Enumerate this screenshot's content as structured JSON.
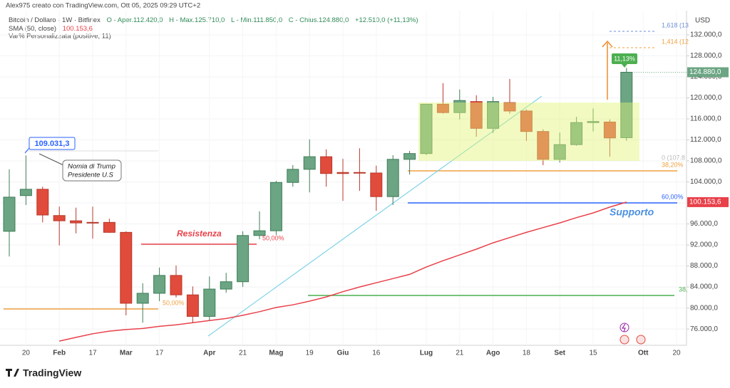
{
  "header": {
    "credit": "Alex975 creato con TradingView.com, Ott 05, 2025 09:29 UTC+2",
    "symbol": "Bitcoin / Dollaro · 1W · Bitfinex",
    "ohlc": [
      "O - Aper.112.420,0",
      "H - Max.125.710,0",
      "L - Min.111.850,0",
      "C - Chius.124.880,0",
      "+12.510,0 (+11,13%)"
    ],
    "sma_name": "SMA (50, close)",
    "indicator": "Var% Personalizzata (positive, 11)"
  },
  "chart_data": {
    "type": "candlestick",
    "currency": "USD",
    "categories": [
      null,
      "20",
      null,
      "Feb",
      null,
      "17",
      null,
      "Mar",
      null,
      "17",
      null,
      null,
      "Apr",
      null,
      "21",
      null,
      "Mag",
      null,
      "19",
      null,
      "Giu",
      null,
      "16",
      null,
      null,
      "Lug",
      null,
      "21",
      null,
      "Ago",
      null,
      "18",
      null,
      "Set",
      null,
      "15",
      null,
      null,
      "Ott",
      null,
      "20"
    ],
    "open": [
      94600,
      101400,
      102600,
      97600,
      96600,
      96300,
      96300,
      94400,
      80900,
      82800,
      86200,
      82500,
      78400,
      83600,
      85000,
      93800,
      94700,
      103900,
      106400,
      108800,
      105800,
      105800,
      105700,
      101200,
      108300,
      109400,
      118800,
      117200,
      119300,
      114200,
      119100,
      117500,
      113600,
      108300,
      111100,
      115300,
      115400,
      112420,
      null,
      null,
      null
    ],
    "high": [
      106400,
      109031.3,
      103100,
      99300,
      99100,
      99300,
      97000,
      94600,
      84700,
      87700,
      88100,
      84100,
      86000,
      86700,
      94600,
      98400,
      104200,
      107200,
      112100,
      110200,
      108400,
      110400,
      107100,
      109100,
      109900,
      118800,
      122800,
      121600,
      120500,
      120200,
      123600,
      117800,
      114000,
      113400,
      116400,
      118000,
      115900,
      125710,
      null,
      null,
      null
    ],
    "low": [
      89800,
      99600,
      96300,
      91900,
      94200,
      93200,
      94300,
      78600,
      77200,
      81300,
      82000,
      77200,
      77600,
      82900,
      84000,
      93100,
      93900,
      103100,
      102000,
      103100,
      100400,
      102300,
      98500,
      99600,
      105400,
      109100,
      117000,
      115900,
      112600,
      113300,
      117000,
      111800,
      107200,
      107700,
      110900,
      113600,
      108800,
      111850,
      null,
      null,
      null
    ],
    "close": [
      101100,
      102600,
      97700,
      96600,
      96200,
      96200,
      94400,
      80900,
      82800,
      86200,
      82500,
      78400,
      83600,
      85000,
      93800,
      94700,
      103900,
      106400,
      108800,
      105600,
      105600,
      105700,
      101200,
      108300,
      109400,
      118800,
      117200,
      119500,
      114200,
      119300,
      117500,
      113600,
      108300,
      111100,
      115300,
      115500,
      112370,
      124880,
      null,
      null,
      null
    ],
    "up_color": "#6ba583",
    "down_color": "#e04b3c",
    "last_price_label": "124.880,0",
    "sma": {
      "color": "#e8414a",
      "last_label": "100.153,6",
      "values": [
        null,
        null,
        null,
        73700,
        74400,
        75100,
        75600,
        75900,
        76100,
        76500,
        76800,
        77200,
        77600,
        78000,
        78600,
        79300,
        80100,
        80600,
        81300,
        82100,
        83100,
        84000,
        84800,
        85600,
        86400,
        87800,
        89000,
        90100,
        91200,
        92400,
        93400,
        94400,
        95300,
        96200,
        97200,
        98100,
        99200,
        100153.6,
        null,
        null,
        null
      ]
    },
    "ylim": [
      72900,
      136600
    ],
    "yticks": [
      {
        "value": 76000,
        "label": "76.000,0"
      },
      {
        "value": 80000,
        "label": "80.000,0"
      },
      {
        "value": 84000,
        "label": "84.000,0"
      },
      {
        "value": 88000,
        "label": "88.000,0"
      },
      {
        "value": 92000,
        "label": "92.000,0"
      },
      {
        "value": 96000,
        "label": "96.000,0"
      },
      {
        "value": 100000,
        "label": "100.000,0"
      },
      {
        "value": 104000,
        "label": "104.000,0"
      },
      {
        "value": 108000,
        "label": "108.000,0"
      },
      {
        "value": 112000,
        "label": "112.000,0"
      },
      {
        "value": 116000,
        "label": "116.000,0"
      },
      {
        "value": 120000,
        "label": "120.000,0"
      },
      {
        "value": 124000,
        "label": "124.000,0"
      },
      {
        "value": 128000,
        "label": "128.000,0"
      },
      {
        "value": 132000,
        "label": "132.000,0"
      }
    ],
    "grid": true,
    "annotations": {
      "high_label": "109.031,3",
      "note": [
        "Nomia di Trump",
        "Presidente U.S"
      ],
      "resistance": "Resistenza",
      "support": "Supporto",
      "change_label": "11,13%",
      "fib_1618": "1,618 (13",
      "fib_1414": "1,414 (12",
      "fib_0": "0 (107.8",
      "fib_382": "38,20%",
      "fib_60": "60,00%",
      "fib_50_a": "50,00%",
      "fib_50_b": "50,00%",
      "fib_38_right": "38,"
    }
  },
  "footer": {
    "logo": "TradingView"
  }
}
